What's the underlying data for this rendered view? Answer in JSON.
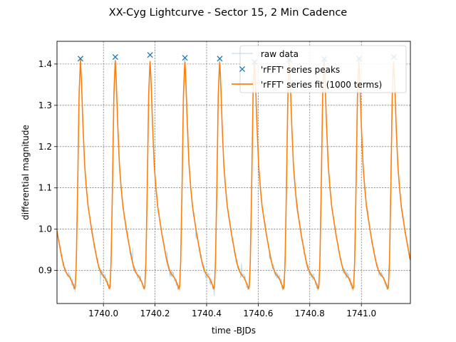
{
  "chart_data": {
    "type": "line",
    "title": "XX-Cyg Lightcurve - Sector 15, 2 Min Cadence",
    "xlabel": "time -BJDs",
    "ylabel": "differential magnitude",
    "xlim": [
      1739.82,
      1741.19
    ],
    "ylim": [
      0.82,
      1.455
    ],
    "x_ticks": [
      1740.0,
      1740.2,
      1740.4,
      1740.6,
      1740.8,
      1741.0
    ],
    "x_tick_labels": [
      "1740.0",
      "1740.2",
      "1740.4",
      "1740.6",
      "1740.8",
      "1741.0"
    ],
    "y_ticks": [
      0.9,
      1.0,
      1.1,
      1.2,
      1.3,
      1.4
    ],
    "y_tick_labels": [
      "0.9",
      "1.0",
      "1.1",
      "1.2",
      "1.3",
      "1.4"
    ],
    "grid": true,
    "legend_position": "top-right",
    "colors": {
      "raw": "#9ecae1",
      "peaks": "#1f77b4",
      "fit": "#ff7f0e",
      "grid": "#555555"
    },
    "pulsation": {
      "period_days": 0.1349,
      "first_peak_time": 1739.911,
      "peak_magnitude": 1.41,
      "min_magnitude": 0.855
    },
    "series": [
      {
        "name": "raw data",
        "style": "thin-line"
      },
      {
        "name": "'rFFT' series peaks",
        "style": "x-markers",
        "x": [
          1739.911,
          1740.046,
          1740.181,
          1740.316,
          1740.451,
          1740.586,
          1740.721,
          1740.856,
          1740.991,
          1741.126
        ],
        "y": [
          1.413,
          1.417,
          1.422,
          1.415,
          1.413,
          1.405,
          1.41,
          1.412,
          1.413,
          1.417
        ]
      },
      {
        "name": "'rFFT' series fit (1000 terms)",
        "style": "line"
      }
    ]
  }
}
